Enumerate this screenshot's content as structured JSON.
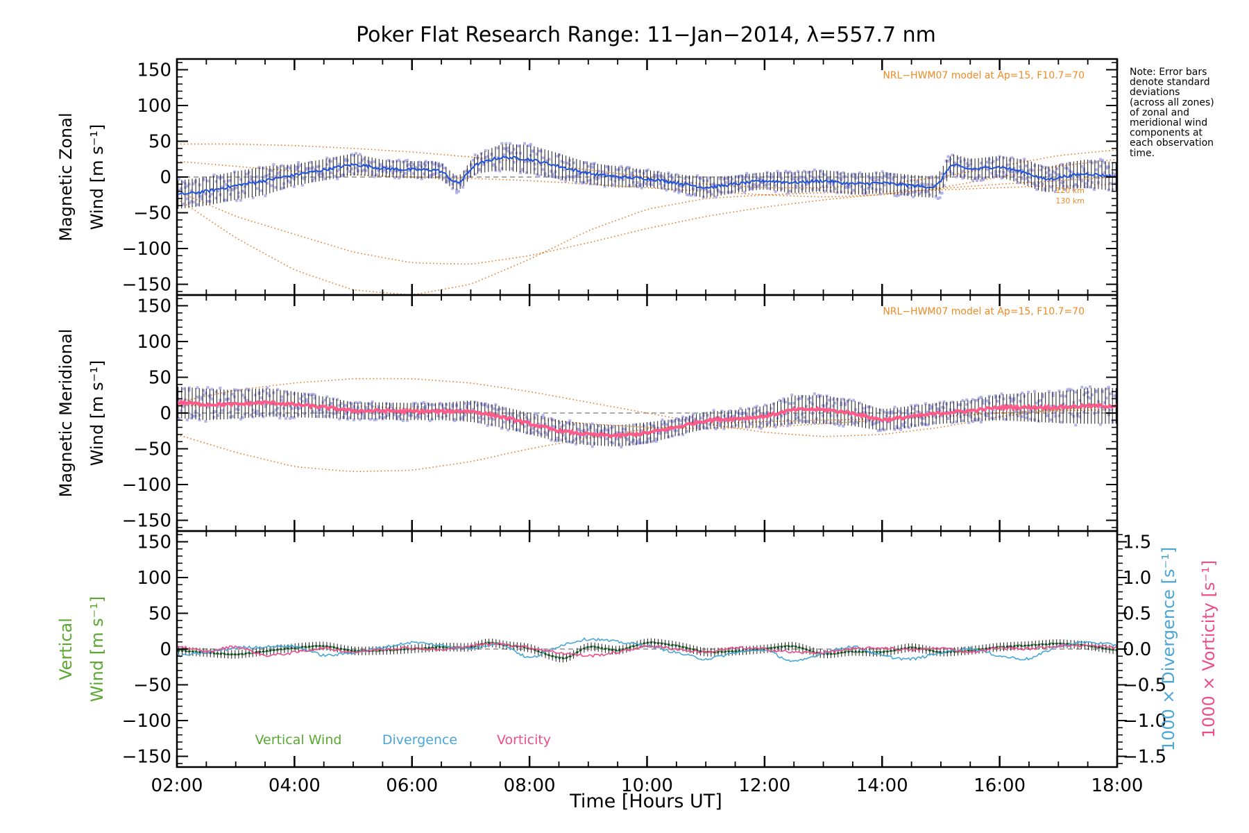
{
  "title": "Poker Flat Research Range: 11−Jan−2014, λ=557.7 nm",
  "note_lines": [
    "Note: Error bars",
    "denote standard",
    "deviations",
    "(across all zones)",
    "of zonal and",
    "meridional wind",
    "components at",
    "each observation",
    "time."
  ],
  "colors": {
    "model": "#e8741c",
    "scatter": "#a8a8e6",
    "zonal_mean": "#2255dd",
    "meridional_mean": "#ff5b8a",
    "vertical": "#5aa832",
    "divergence": "#4aa6d6",
    "vorticity": "#ee4d8a",
    "errorbar": "#1a1a1a",
    "zero_line": "#777777"
  },
  "chart_data": [
    {
      "type": "line",
      "panel": "zonal",
      "ylabel_line1": "Magnetic Zonal",
      "ylabel_line2": "Wind [m s⁻¹]",
      "model_note": "NRL−HWM07 model at Ap=15, F10.7=70",
      "model_alt_labels": [
        "120 km",
        "130 km"
      ],
      "xlim": [
        2,
        18
      ],
      "ylim": [
        -165,
        165
      ],
      "yticks": [
        150,
        100,
        50,
        0,
        -50,
        -100,
        -150
      ],
      "yticklabels": [
        "150",
        "100",
        "50",
        "0",
        "−50",
        "−100",
        "−150"
      ],
      "mean_x": [
        2,
        2.5,
        3,
        3.5,
        4,
        4.5,
        5,
        5.5,
        6,
        6.5,
        6.8,
        7,
        7.5,
        8,
        8.5,
        9,
        9.5,
        10,
        10.5,
        11,
        11.5,
        12,
        12.5,
        13,
        13.5,
        14,
        14.5,
        15,
        15.1,
        15.3,
        15.5,
        16,
        16.5,
        16.8,
        17,
        17.5,
        18
      ],
      "mean_y": [
        -25,
        -20,
        -12,
        -5,
        3,
        10,
        18,
        12,
        10,
        10,
        -15,
        15,
        28,
        25,
        15,
        5,
        0,
        -2,
        -8,
        -15,
        -10,
        -5,
        -8,
        -5,
        -10,
        -8,
        -12,
        -15,
        20,
        15,
        10,
        15,
        5,
        -5,
        0,
        5,
        0
      ],
      "std": [
        20,
        20,
        20,
        20,
        15,
        15,
        15,
        12,
        12,
        12,
        10,
        12,
        18,
        20,
        18,
        15,
        15,
        12,
        12,
        15,
        12,
        12,
        15,
        15,
        15,
        15,
        15,
        15,
        15,
        15,
        15,
        15,
        18,
        18,
        18,
        20,
        20
      ],
      "model_curves": [
        {
          "x": [
            2,
            3,
            4,
            5,
            6,
            7,
            8,
            9,
            10,
            11,
            12,
            13,
            14,
            15,
            16,
            17,
            18
          ],
          "y": [
            -20,
            -55,
            -80,
            -105,
            -120,
            -122,
            -110,
            -92,
            -72,
            -55,
            -42,
            -32,
            -24,
            -16,
            -10,
            -5,
            0
          ]
        },
        {
          "x": [
            2,
            3,
            4,
            5,
            6,
            7,
            8,
            9,
            10,
            11,
            12,
            13,
            14,
            15,
            16,
            17,
            18
          ],
          "y": [
            -30,
            -85,
            -130,
            -158,
            -165,
            -150,
            -115,
            -75,
            -45,
            -30,
            -25,
            -22,
            -20,
            -18,
            -15,
            -12,
            -10
          ]
        },
        {
          "x": [
            2,
            3,
            4,
            5,
            6,
            7,
            8,
            9,
            10,
            11,
            12,
            13,
            14,
            15,
            16,
            17,
            18
          ],
          "y": [
            46,
            46,
            44,
            40,
            35,
            28,
            20,
            10,
            0,
            -10,
            -15,
            -15,
            -10,
            0,
            15,
            30,
            38
          ]
        },
        {
          "x": [
            2,
            3,
            4,
            5,
            6,
            7,
            8,
            9,
            10,
            11,
            12,
            13,
            14,
            15,
            16,
            17,
            18
          ],
          "y": [
            22,
            15,
            8,
            3,
            0,
            -2,
            -5,
            -10,
            -15,
            -20,
            -25,
            -28,
            -25,
            -15,
            0,
            15,
            25
          ]
        }
      ]
    },
    {
      "type": "line",
      "panel": "meridional",
      "ylabel_line1": "Magnetic Meridional",
      "ylabel_line2": "Wind [m s⁻¹]",
      "model_note": "NRL−HWM07 model at Ap=15, F10.7=70",
      "xlim": [
        2,
        18
      ],
      "ylim": [
        -165,
        165
      ],
      "yticks": [
        150,
        100,
        50,
        0,
        -50,
        -100,
        -150
      ],
      "yticklabels": [
        "150",
        "100",
        "50",
        "0",
        "−50",
        "−100",
        "−150"
      ],
      "mean_x": [
        2,
        2.5,
        3,
        3.5,
        4,
        4.5,
        5,
        5.5,
        6,
        6.5,
        7,
        7.5,
        8,
        8.5,
        9,
        9.5,
        10,
        10.5,
        11,
        11.5,
        12,
        12.5,
        13,
        13.5,
        14,
        14.5,
        15,
        15.5,
        16,
        16.5,
        17,
        17.5,
        18
      ],
      "mean_y": [
        15,
        12,
        12,
        15,
        12,
        8,
        3,
        3,
        2,
        2,
        3,
        -5,
        -15,
        -25,
        -30,
        -32,
        -28,
        -20,
        -10,
        -8,
        -5,
        5,
        5,
        0,
        -10,
        -5,
        0,
        3,
        8,
        8,
        8,
        10,
        10
      ],
      "std": [
        22,
        22,
        20,
        20,
        18,
        15,
        12,
        12,
        12,
        12,
        15,
        15,
        15,
        15,
        15,
        15,
        15,
        12,
        12,
        12,
        15,
        20,
        20,
        18,
        15,
        15,
        15,
        15,
        18,
        20,
        22,
        25,
        25
      ],
      "model_curves": [
        {
          "x": [
            2,
            3,
            4,
            5,
            6,
            7,
            8,
            9,
            10,
            11,
            12,
            13,
            14,
            15,
            16,
            17,
            18
          ],
          "y": [
            -30,
            -55,
            -75,
            -82,
            -80,
            -68,
            -50,
            -35,
            -22,
            -15,
            -12,
            -10,
            -8,
            -5,
            0,
            5,
            10
          ]
        },
        {
          "x": [
            2,
            3,
            4,
            5,
            6,
            7,
            8,
            9,
            10,
            11,
            12,
            13,
            14,
            15,
            16,
            17,
            18
          ],
          "y": [
            15,
            32,
            42,
            48,
            48,
            42,
            30,
            15,
            0,
            -15,
            -27,
            -33,
            -30,
            -20,
            -5,
            5,
            10
          ]
        },
        {
          "x": [
            2,
            3,
            4,
            5,
            6,
            7,
            8,
            9,
            10,
            11,
            12,
            13,
            14,
            15,
            16,
            17,
            18
          ],
          "y": [
            10,
            12,
            12,
            10,
            6,
            0,
            -8,
            -15,
            -20,
            -22,
            -20,
            -15,
            -10,
            -5,
            0,
            3,
            5
          ]
        }
      ]
    },
    {
      "type": "line",
      "panel": "vertical",
      "ylabel_line1": "Vertical",
      "ylabel_line2": "Wind [m s⁻¹]",
      "y2label_div": "1000 × Divergence [s⁻¹]",
      "y2label_vort": "1000 × Vorticity [s⁻¹]",
      "xlabel": "Time [Hours UT]",
      "xlim": [
        2,
        18
      ],
      "ylim": [
        -165,
        165
      ],
      "y2lim": [
        -1.65,
        1.65
      ],
      "yticks": [
        150,
        100,
        50,
        0,
        -50,
        -100,
        -150
      ],
      "yticklabels": [
        "150",
        "100",
        "50",
        "0",
        "−50",
        "−100",
        "−150"
      ],
      "y2ticks": [
        1.5,
        1.0,
        0.5,
        0.0,
        -0.5,
        -1.0,
        -1.5
      ],
      "y2ticklabels": [
        "1.5",
        "1.0",
        "0.5",
        "0.0",
        "−0.5",
        "−1.0",
        "−1.5"
      ],
      "xticks": [
        2,
        4,
        6,
        8,
        10,
        12,
        14,
        16,
        18
      ],
      "xticklabels": [
        "02:00",
        "04:00",
        "06:00",
        "08:00",
        "10:00",
        "12:00",
        "14:00",
        "16:00",
        "18:00"
      ],
      "legend": [
        "Vertical Wind",
        "Divergence",
        "Vorticity"
      ],
      "series": [
        {
          "name": "Vertical Wind",
          "axis": "left",
          "x": [
            2,
            2.5,
            3,
            3.5,
            4,
            4.5,
            5,
            5.5,
            6,
            6.5,
            7,
            7.3,
            7.6,
            8,
            8.3,
            8.6,
            9,
            9.5,
            10,
            10.5,
            11,
            11.5,
            12,
            12.5,
            13,
            13.5,
            14,
            14.5,
            15,
            15.5,
            16,
            16.5,
            17,
            17.5,
            18
          ],
          "y": [
            -2,
            -5,
            -8,
            -3,
            2,
            5,
            -3,
            -2,
            0,
            3,
            2,
            10,
            5,
            2,
            -8,
            -15,
            5,
            -3,
            10,
            5,
            -5,
            -3,
            0,
            5,
            -8,
            -3,
            -5,
            3,
            -5,
            -2,
            3,
            5,
            8,
            5,
            -2
          ]
        },
        {
          "name": "Divergence",
          "axis": "right",
          "x": [
            2,
            2.5,
            3,
            3.5,
            4,
            4.5,
            5,
            5.5,
            6,
            6.5,
            7,
            7.5,
            8,
            8.5,
            9,
            9.5,
            10,
            10.5,
            11,
            11.5,
            12,
            12.5,
            13,
            13.5,
            14,
            14.5,
            15,
            15.5,
            16,
            16.5,
            17,
            17.5,
            18
          ],
          "y": [
            -0.1,
            -0.05,
            0.02,
            0.03,
            0.05,
            -0.1,
            -0.05,
            0.02,
            0.1,
            0.05,
            0.0,
            0.1,
            -0.15,
            0.05,
            0.15,
            0.1,
            0.05,
            -0.05,
            -0.15,
            -0.05,
            0.0,
            -0.2,
            -0.05,
            0.05,
            -0.1,
            -0.15,
            -0.05,
            0.02,
            -0.1,
            -0.15,
            0.05,
            0.1,
            0.05
          ]
        },
        {
          "name": "Vorticity",
          "axis": "right",
          "x": [
            2,
            2.5,
            3,
            3.5,
            4,
            4.5,
            5,
            5.5,
            6,
            6.5,
            7,
            7.5,
            8,
            8.5,
            9,
            9.5,
            10,
            10.5,
            11,
            11.5,
            12,
            12.5,
            13,
            13.5,
            14,
            14.5,
            15,
            15.5,
            16,
            16.5,
            17,
            17.5,
            18
          ],
          "y": [
            0.05,
            -0.05,
            0.05,
            -0.1,
            -0.05,
            0.02,
            -0.05,
            0.0,
            0.02,
            -0.02,
            0.05,
            0.08,
            0.02,
            -0.05,
            -0.1,
            -0.05,
            0.05,
            0.0,
            -0.05,
            0.02,
            0.0,
            -0.05,
            -0.05,
            0.0,
            0.02,
            -0.02,
            0.02,
            -0.05,
            0.02,
            0.0,
            0.05,
            0.05,
            0.02
          ]
        }
      ]
    }
  ]
}
